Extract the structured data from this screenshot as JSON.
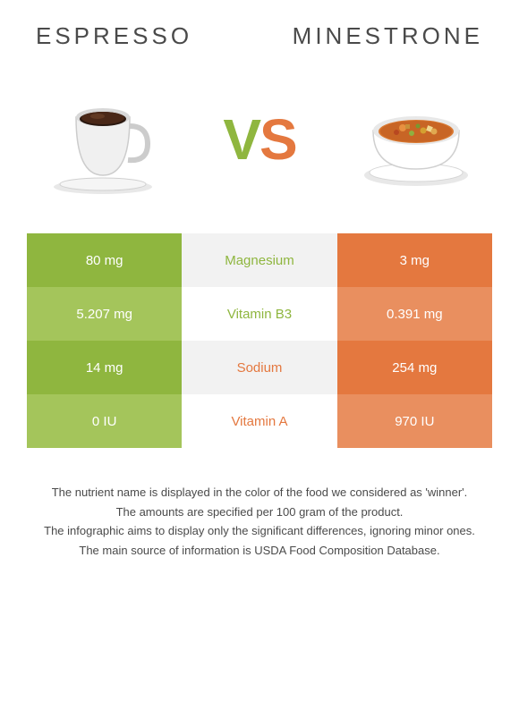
{
  "titles": {
    "left": "Espresso",
    "right": "Minestrone"
  },
  "vs": {
    "v": "V",
    "s": "S"
  },
  "colors": {
    "left_primary": "#8fb63f",
    "left_secondary": "#a4c55b",
    "right_primary": "#e4783f",
    "right_secondary": "#e98f5f",
    "mid_bg_light": "#f2f2f2",
    "mid_bg_white": "#ffffff",
    "text_mid_green": "#8fb63f",
    "text_mid_orange": "#e4783f",
    "title_color": "#4a4a4a",
    "footer_color": "#4a4a4a"
  },
  "rows": [
    {
      "left": "80 mg",
      "label": "Magnesium",
      "right": "3 mg",
      "winner": "left"
    },
    {
      "left": "5.207 mg",
      "label": "Vitamin B3",
      "right": "0.391 mg",
      "winner": "left"
    },
    {
      "left": "14 mg",
      "label": "Sodium",
      "right": "254 mg",
      "winner": "right"
    },
    {
      "left": "0 IU",
      "label": "Vitamin A",
      "right": "970 IU",
      "winner": "right"
    }
  ],
  "footer": {
    "l1": "The nutrient name is displayed in the color of the food we considered as 'winner'.",
    "l2": "The amounts are specified per 100 gram of the product.",
    "l3": "The infographic aims to display only the significant differences, ignoring minor ones.",
    "l4": "The main source of information is USDA Food Composition Database."
  }
}
